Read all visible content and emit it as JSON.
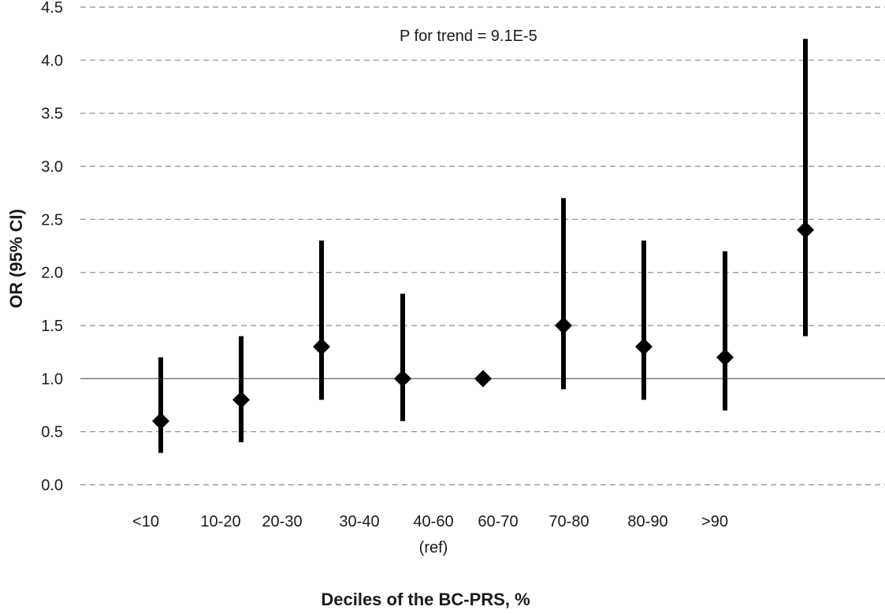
{
  "chart_data": {
    "type": "scatter",
    "title": "",
    "xlabel": "Deciles of  the BC-PRS, %",
    "ylabel": "OR (95% CI)",
    "ylim": [
      0,
      4.5
    ],
    "yticks": [
      "0.0",
      "0.5",
      "1.0",
      "1.5",
      "2.0",
      "2.5",
      "3.0",
      "3.5",
      "4.0",
      "4.5"
    ],
    "grid": "horizontal-dashed",
    "reference_line": 1.0,
    "x_tick_labels": [
      "<10",
      "10-20",
      "20-30",
      "30-40",
      "40-60",
      "60-70",
      "70-80",
      "80-90",
      ">90"
    ],
    "x_tick_sublabel": {
      "category": "40-60",
      "text": "(ref)"
    },
    "annotation": "P for trend = 9.1E-5",
    "points": [
      {
        "or": 0.6,
        "lower": 0.3,
        "upper": 1.2
      },
      {
        "or": 0.8,
        "lower": 0.4,
        "upper": 1.4
      },
      {
        "or": 1.3,
        "lower": 0.8,
        "upper": 2.3
      },
      {
        "or": 1.0,
        "lower": 0.6,
        "upper": 1.8
      },
      {
        "or": 1.0,
        "lower": 1.0,
        "upper": 1.0
      },
      {
        "or": 1.5,
        "lower": 0.9,
        "upper": 2.7
      },
      {
        "or": 1.3,
        "lower": 0.8,
        "upper": 2.3
      },
      {
        "or": 1.2,
        "lower": 0.7,
        "upper": 2.2
      },
      {
        "or": 2.4,
        "lower": 1.4,
        "upper": 4.2
      }
    ],
    "marker_color": "#000000"
  }
}
